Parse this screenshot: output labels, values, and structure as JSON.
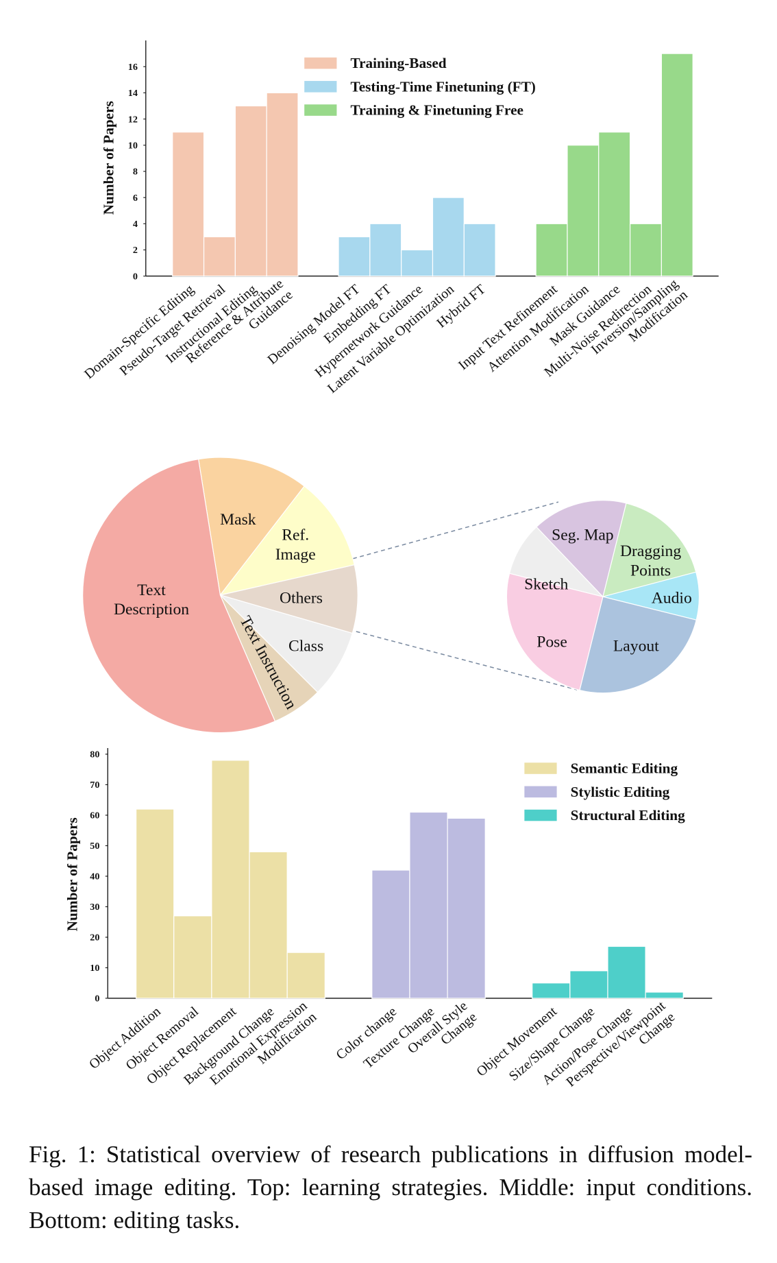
{
  "chart_data": [
    {
      "type": "bar",
      "y_label": "Number of Papers",
      "categories": [
        "Domain-Specific Editing",
        "Pseudo-Target Retrieval",
        "Instructional Editing",
        "Reference & Attribute\nGuidance",
        "Denoising Model FT",
        "Embedding FT",
        "Hypernetwork Guidance",
        "Latent Variable Optimization",
        "Hybrid FT",
        "Input Text Refinement",
        "Attention Modification",
        "Mask Guidance",
        "Multi-Noise Redirection",
        "Inversion/Sampling\nModification"
      ],
      "series": [
        {
          "name": "Training-Based",
          "color": "#f4c7b0",
          "values": [
            11,
            3,
            13,
            14,
            null,
            null,
            null,
            null,
            null,
            null,
            null,
            null,
            null,
            null
          ]
        },
        {
          "name": "Testing-Time Finetuning (FT)",
          "color": "#a8d8ee",
          "values": [
            null,
            null,
            null,
            null,
            3,
            4,
            2,
            6,
            4,
            null,
            null,
            null,
            null,
            null
          ]
        },
        {
          "name": "Training & Finetuning Free",
          "color": "#98d98a",
          "values": [
            null,
            null,
            null,
            null,
            null,
            null,
            null,
            null,
            null,
            4,
            10,
            11,
            4,
            17
          ]
        }
      ],
      "ylim": [
        0,
        18
      ],
      "yticks": [
        0,
        2,
        4,
        6,
        8,
        10,
        12,
        14,
        16
      ],
      "legend": "upper center"
    },
    {
      "type": "pie",
      "categories": [
        "Mask",
        "Ref.\nImage",
        "Others",
        "Class",
        "Text Instruction",
        "Text\nDescription"
      ],
      "values": [
        13,
        11,
        8,
        8,
        6,
        54
      ],
      "colors": [
        "#fad3a0",
        "#fefdc9",
        "#e6d8cc",
        "#eeeeee",
        "#e6d4b8",
        "#f4aaa4"
      ]
    },
    {
      "type": "pie",
      "categories": [
        "Dragging\nPoints",
        "Audio",
        "Layout",
        "Pose",
        "Sketch",
        "Seg. Map"
      ],
      "values": [
        17,
        8,
        25,
        25,
        9,
        16
      ],
      "colors": [
        "#c9ebc0",
        "#a8e6f6",
        "#abc3de",
        "#f9cde2",
        "#eeeeee",
        "#d8c4e0"
      ]
    },
    {
      "type": "bar",
      "y_label": "Number of Papers",
      "categories": [
        "Object Addition",
        "Object Removal",
        "Object Replacement",
        "Background Change",
        "Emotional Expression\nModification",
        "Color change",
        "Texture Change",
        "Overall Style\nChange",
        "Object Movement",
        "Size/Shape Change",
        "Action/Pose Change",
        "Perspective/Viewpoint\nChange"
      ],
      "series": [
        {
          "name": "Semantic Editing",
          "color": "#ece0a6",
          "values": [
            62,
            27,
            78,
            48,
            15,
            null,
            null,
            null,
            null,
            null,
            null,
            null
          ]
        },
        {
          "name": "Stylistic Editing",
          "color": "#bcbbe0",
          "values": [
            null,
            null,
            null,
            null,
            null,
            42,
            61,
            59,
            null,
            null,
            null,
            null
          ]
        },
        {
          "name": "Structural Editing",
          "color": "#4ecfc9",
          "values": [
            null,
            null,
            null,
            null,
            null,
            null,
            null,
            null,
            5,
            9,
            17,
            2
          ]
        }
      ],
      "ylim": [
        0,
        82
      ],
      "yticks": [
        0,
        10,
        20,
        30,
        40,
        50,
        60,
        70,
        80
      ],
      "legend": "upper right"
    }
  ],
  "caption": "Fig. 1: Statistical overview of research publications in diffusion model-based image editing. Top: learning strategies. Middle: input conditions. Bottom: editing tasks."
}
